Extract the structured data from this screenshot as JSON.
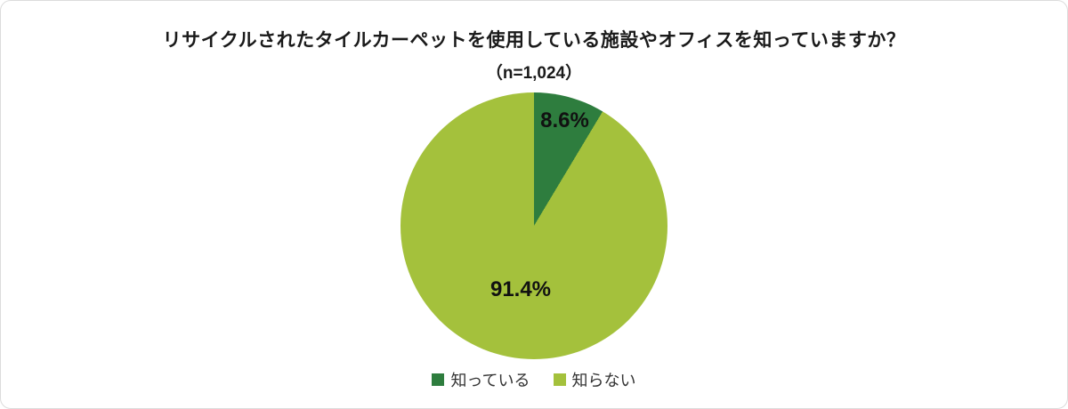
{
  "chart_data": {
    "type": "pie",
    "title": "リサイクルされたタイルカーペットを使用している施設やオフィスを知っていますか？",
    "subtitle": "（n=1,024）",
    "legend_position": "bottom",
    "start_angle": "top",
    "direction": "clockwise",
    "series": [
      {
        "name": "知っている",
        "value": 8.6,
        "label": "8.6%",
        "color": "#2e7d3e"
      },
      {
        "name": "知らない",
        "value": 91.4,
        "label": "91.4%",
        "color": "#a4c13c"
      }
    ]
  }
}
